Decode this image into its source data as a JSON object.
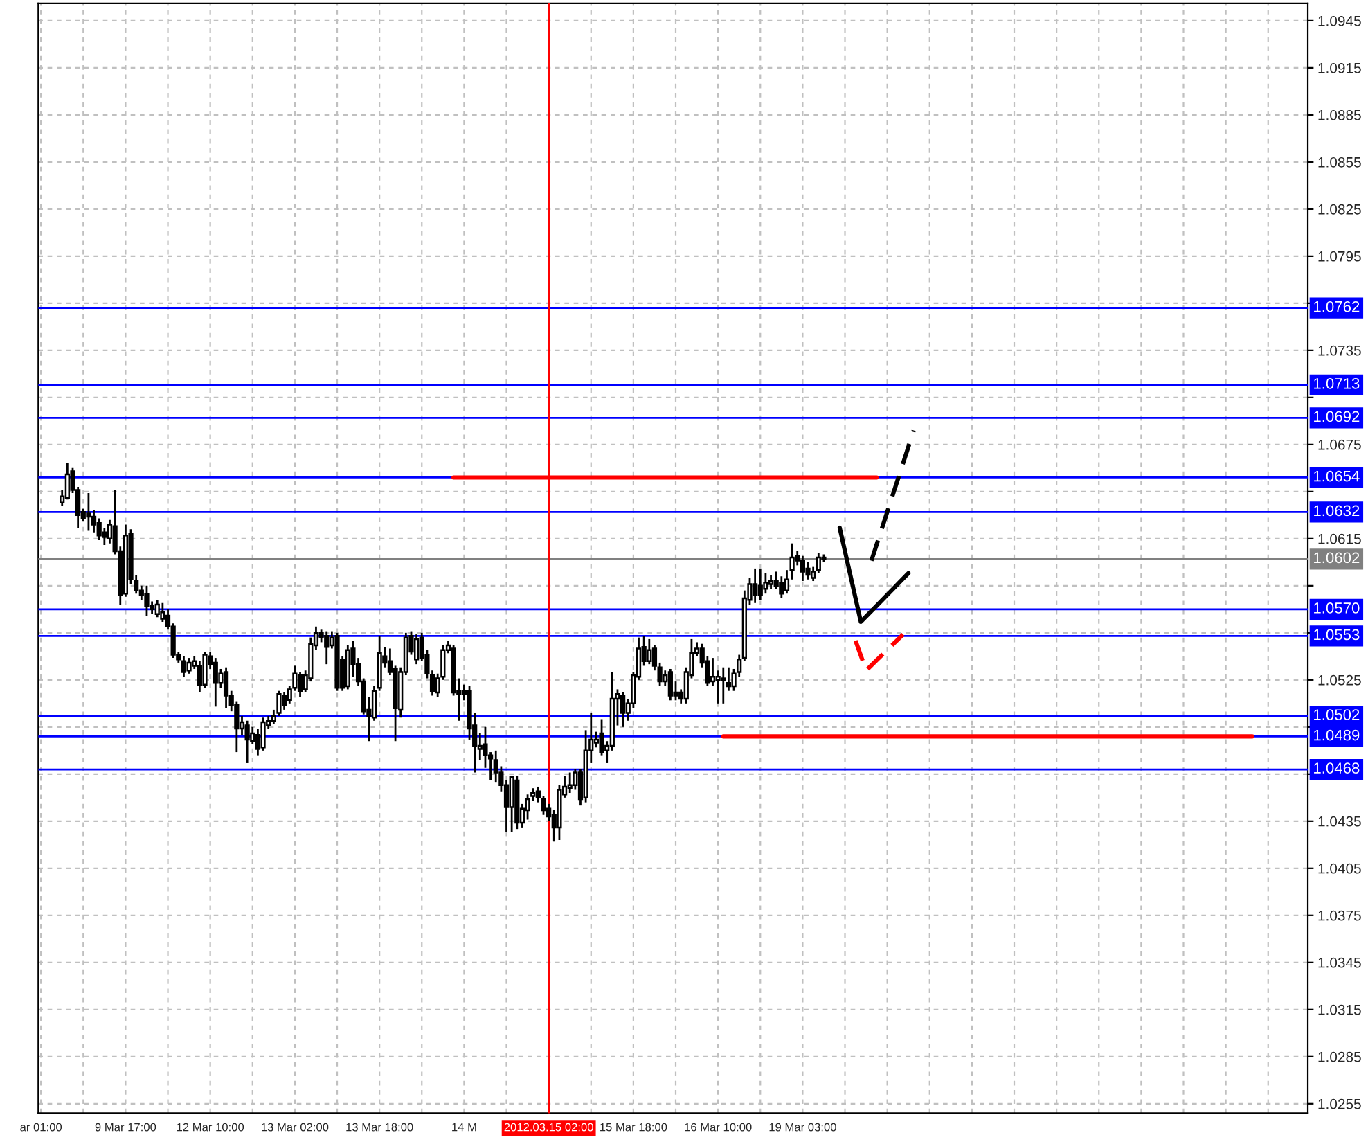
{
  "chart_data": {
    "type": "candlestick",
    "categories": [
      "ar 01:00",
      null,
      null,
      null,
      null,
      null,
      null,
      null,
      null,
      null,
      null,
      null,
      null,
      null,
      null,
      null,
      "9 Mar 17:00",
      null,
      null,
      null,
      null,
      null,
      null,
      null,
      null,
      null,
      null,
      null,
      null,
      null,
      null,
      null,
      "12 Mar 10:00",
      null,
      null,
      null,
      null,
      null,
      null,
      null,
      null,
      null,
      null,
      null,
      null,
      null,
      null,
      null,
      "13 Mar 02:00",
      null,
      null,
      null,
      null,
      null,
      null,
      null,
      null,
      null,
      null,
      null,
      null,
      null,
      null,
      null,
      "13 Mar 18:00",
      null,
      null,
      null,
      null,
      null,
      null,
      null,
      null,
      null,
      null,
      null,
      null,
      null,
      null,
      null,
      "14 M",
      null,
      null,
      null,
      null,
      null,
      null,
      null,
      null,
      null,
      null,
      null,
      null,
      null,
      null,
      null,
      "2012.03.15 02:00",
      null,
      null,
      null,
      null,
      null,
      null,
      null,
      null,
      null,
      null,
      null,
      null,
      null,
      null,
      null,
      "15 Mar 18:00",
      null,
      null,
      null,
      null,
      null,
      null,
      null,
      null,
      null,
      null,
      null,
      null,
      null,
      null,
      null,
      "16 Mar 10:00",
      null,
      null,
      null,
      null,
      null,
      null,
      null,
      null,
      null,
      null,
      null,
      null,
      null,
      null,
      null,
      "19 Mar 03:00",
      null,
      null,
      null,
      null,
      null,
      null,
      null,
      null,
      null,
      null,
      null,
      null,
      null,
      null,
      null,
      null,
      null,
      null,
      null,
      null,
      null,
      null,
      null,
      null,
      null,
      null,
      null,
      null,
      null,
      null,
      null,
      null,
      null,
      null,
      null,
      null,
      null,
      null,
      null,
      null,
      null,
      null,
      null,
      null,
      null,
      null,
      null,
      null,
      null,
      null,
      null,
      null,
      null,
      null,
      null,
      null,
      null,
      null,
      null,
      null,
      null,
      null,
      null,
      null,
      null,
      null,
      null,
      null,
      null,
      null,
      null,
      null,
      null,
      null,
      null,
      null,
      null,
      null,
      null,
      null,
      null,
      null,
      null,
      null,
      null,
      null,
      null,
      null,
      null,
      null,
      null,
      null,
      null,
      null,
      null
    ],
    "ohlc": [
      null,
      null,
      null,
      null,
      [
        1.0638,
        1.0646,
        1.0636,
        1.0642
      ],
      [
        1.0641,
        1.0663,
        1.064,
        1.0656
      ],
      [
        1.0658,
        1.066,
        1.0644,
        1.0646
      ],
      [
        1.0646,
        1.0648,
        1.0622,
        1.063
      ],
      [
        1.0632,
        1.0634,
        1.0626,
        1.0628
      ],
      [
        1.0631,
        1.0644,
        1.062,
        1.0629
      ],
      [
        1.0629,
        1.0633,
        1.0619,
        1.0624
      ],
      [
        1.0625,
        1.0628,
        1.0614,
        1.0617
      ],
      [
        1.0619,
        1.0622,
        1.0611,
        1.0616
      ],
      [
        1.0615,
        1.0627,
        1.0612,
        1.0624
      ],
      [
        1.0623,
        1.0646,
        1.0605,
        1.0607
      ],
      [
        1.0607,
        1.061,
        1.0573,
        1.0579
      ],
      [
        1.058,
        1.0624,
        1.0578,
        1.0617
      ],
      [
        1.0618,
        1.0621,
        1.0586,
        1.0589
      ],
      [
        1.0588,
        1.0592,
        1.058,
        1.0582
      ],
      [
        1.0582,
        1.0585,
        1.0576,
        1.0579
      ],
      [
        1.058,
        1.0585,
        1.0566,
        1.0572
      ],
      [
        1.0572,
        1.0575,
        1.0567,
        1.057
      ],
      [
        1.0567,
        1.0576,
        1.0565,
        1.0573
      ],
      [
        1.0564,
        1.0574,
        1.0562,
        1.0568
      ],
      [
        1.0566,
        1.057,
        1.0557,
        1.0559
      ],
      [
        1.0559,
        1.0561,
        1.0539,
        1.0541
      ],
      [
        1.0541,
        1.0543,
        1.0536,
        1.0538
      ],
      [
        1.0537,
        1.054,
        1.0527,
        1.053
      ],
      [
        1.0531,
        1.0539,
        1.0529,
        1.0536
      ],
      [
        1.0534,
        1.054,
        1.0532,
        1.0537
      ],
      [
        1.0534,
        1.0537,
        1.0517,
        1.0522
      ],
      [
        1.0522,
        1.0543,
        1.052,
        1.0541
      ],
      [
        1.054,
        1.0543,
        1.0532,
        1.0535
      ],
      [
        1.0536,
        1.0539,
        1.0508,
        1.0523
      ],
      [
        1.0523,
        1.0532,
        1.052,
        1.0529
      ],
      [
        1.053,
        1.0533,
        1.0507,
        1.0515
      ],
      [
        1.0515,
        1.0518,
        1.0505,
        1.0509
      ],
      [
        1.0509,
        1.0511,
        1.0479,
        1.0494
      ],
      [
        1.0494,
        1.0502,
        1.049,
        1.0498
      ],
      [
        1.0496,
        1.0499,
        1.0472,
        1.0487
      ],
      [
        1.0486,
        1.0495,
        1.0484,
        1.0491
      ],
      [
        1.049,
        1.0494,
        1.0477,
        1.0481
      ],
      [
        1.0482,
        1.0501,
        1.048,
        1.0498
      ],
      [
        1.0496,
        1.0502,
        1.0494,
        1.0499
      ],
      [
        1.0499,
        1.0506,
        1.0497,
        1.0502
      ],
      [
        1.0504,
        1.0518,
        1.0502,
        1.0516
      ],
      [
        1.0515,
        1.0517,
        1.0506,
        1.0509
      ],
      [
        1.0512,
        1.0521,
        1.051,
        1.0519
      ],
      [
        1.052,
        1.0534,
        1.0518,
        1.0529
      ],
      [
        1.0528,
        1.053,
        1.0514,
        1.0518
      ],
      [
        1.0519,
        1.0531,
        1.0517,
        1.0528
      ],
      [
        1.0526,
        1.0552,
        1.0524,
        1.0548
      ],
      [
        1.0547,
        1.0559,
        1.0544,
        1.0555
      ],
      [
        1.0555,
        1.0557,
        1.0549,
        1.0552
      ],
      [
        1.0553,
        1.0556,
        1.0535,
        1.0546
      ],
      [
        1.0547,
        1.0556,
        1.0545,
        1.0552
      ],
      [
        1.0553,
        1.0555,
        1.0518,
        1.052
      ],
      [
        1.0538,
        1.054,
        1.0518,
        1.052
      ],
      [
        1.0521,
        1.0547,
        1.0519,
        1.0544
      ],
      [
        1.0545,
        1.055,
        1.0527,
        1.0535
      ],
      [
        1.0535,
        1.0539,
        1.0521,
        1.0524
      ],
      [
        1.0524,
        1.0526,
        1.0503,
        1.0505
      ],
      [
        1.0506,
        1.0514,
        1.0486,
        1.0502
      ],
      [
        1.0501,
        1.0521,
        1.0499,
        1.0518
      ],
      [
        1.052,
        1.0553,
        1.0518,
        1.0542
      ],
      [
        1.054,
        1.0546,
        1.0533,
        1.0536
      ],
      [
        1.0537,
        1.0545,
        1.0528,
        1.053
      ],
      [
        1.0532,
        1.0534,
        1.0486,
        1.0507
      ],
      [
        1.0506,
        1.0533,
        1.0501,
        1.053
      ],
      [
        1.053,
        1.0555,
        1.0528,
        1.0552
      ],
      [
        1.0553,
        1.0556,
        1.0541,
        1.0543
      ],
      [
        1.0538,
        1.0554,
        1.0535,
        1.0551
      ],
      [
        1.0552,
        1.0555,
        1.0537,
        1.0539
      ],
      [
        1.0541,
        1.0544,
        1.0526,
        1.0529
      ],
      [
        1.0528,
        1.0531,
        1.0515,
        1.0518
      ],
      [
        1.0517,
        1.0529,
        1.0514,
        1.0526
      ],
      [
        1.0527,
        1.0547,
        1.0525,
        1.0544
      ],
      [
        1.0544,
        1.055,
        1.0542,
        1.0547
      ],
      [
        1.0545,
        1.0547,
        1.0515,
        1.0517
      ],
      [
        1.0518,
        1.0526,
        1.0499,
        1.0516
      ],
      [
        1.0518,
        1.0522,
        1.0512,
        1.0516
      ],
      [
        1.0518,
        1.0521,
        1.0487,
        1.0494
      ],
      [
        1.0496,
        1.0504,
        1.0466,
        1.0483
      ],
      [
        1.0481,
        1.0491,
        1.0474,
        1.0483
      ],
      [
        1.0484,
        1.0495,
        1.0469,
        1.0477
      ],
      [
        1.0477,
        1.0479,
        1.0461,
        1.0475
      ],
      [
        1.0474,
        1.048,
        1.046,
        1.0466
      ],
      [
        1.0466,
        1.047,
        1.0454,
        1.0458
      ],
      [
        1.0458,
        1.0461,
        1.0428,
        1.0444
      ],
      [
        1.0444,
        1.0464,
        1.0428,
        1.0463
      ],
      [
        1.0461,
        1.0464,
        1.043,
        1.0434
      ],
      [
        1.0434,
        1.0446,
        1.0431,
        1.0443
      ],
      [
        1.0442,
        1.0452,
        1.0436,
        1.0449
      ],
      [
        1.0451,
        1.0456,
        1.0448,
        1.0453
      ],
      [
        1.0454,
        1.0457,
        1.0447,
        1.045
      ],
      [
        1.0449,
        1.0451,
        1.0439,
        1.0442
      ],
      [
        1.0443,
        1.0446,
        1.0435,
        1.0438
      ],
      [
        1.0439,
        1.0442,
        1.0422,
        1.0431
      ],
      [
        1.0431,
        1.0458,
        1.0423,
        1.0455
      ],
      [
        1.0452,
        1.0464,
        1.045,
        1.0457
      ],
      [
        1.0456,
        1.0466,
        1.0453,
        1.0458
      ],
      [
        1.0458,
        1.0468,
        1.0455,
        1.0466
      ],
      [
        1.0466,
        1.0468,
        1.0445,
        1.0449
      ],
      [
        1.045,
        1.0493,
        1.0447,
        1.048
      ],
      [
        1.048,
        1.0504,
        1.0472,
        1.0487
      ],
      [
        1.0485,
        1.0492,
        1.0482,
        1.0487
      ],
      [
        1.0491,
        1.05,
        1.0477,
        1.0479
      ],
      [
        1.048,
        1.0486,
        1.0472,
        1.0483
      ],
      [
        1.0483,
        1.053,
        1.048,
        1.0513
      ],
      [
        1.0513,
        1.0519,
        1.0496,
        1.0516
      ],
      [
        1.0515,
        1.0517,
        1.0495,
        1.0504
      ],
      [
        1.0504,
        1.0513,
        1.0499,
        1.051
      ],
      [
        1.051,
        1.053,
        1.0507,
        1.0528
      ],
      [
        1.0527,
        1.0552,
        1.0525,
        1.0545
      ],
      [
        1.0546,
        1.0553,
        1.0534,
        1.0537
      ],
      [
        1.0537,
        1.0551,
        1.0535,
        1.0544
      ],
      [
        1.0545,
        1.0547,
        1.0531,
        1.0534
      ],
      [
        1.0533,
        1.0536,
        1.0521,
        1.0524
      ],
      [
        1.0524,
        1.0531,
        1.0521,
        1.0528
      ],
      [
        1.053,
        1.0532,
        1.0512,
        1.0515
      ],
      [
        1.0517,
        1.0524,
        1.0512,
        1.0515
      ],
      [
        1.0517,
        1.0519,
        1.051,
        1.0513
      ],
      [
        1.0513,
        1.0533,
        1.051,
        1.053
      ],
      [
        1.0528,
        1.0551,
        1.0526,
        1.0542
      ],
      [
        1.0542,
        1.0549,
        1.054,
        1.0545
      ],
      [
        1.0545,
        1.0548,
        1.0533,
        1.0536
      ],
      [
        1.0537,
        1.054,
        1.0521,
        1.0523
      ],
      [
        1.0524,
        1.0539,
        1.0521,
        1.0527
      ],
      [
        1.0525,
        1.0531,
        1.051,
        1.0527
      ],
      [
        1.0525,
        1.0533,
        1.051,
        1.0526
      ],
      [
        1.0523,
        1.0533,
        1.0518,
        1.0521
      ],
      [
        1.0521,
        1.0532,
        1.0518,
        1.0529
      ],
      [
        1.053,
        1.0541,
        1.0527,
        1.0538
      ],
      [
        1.0539,
        1.0582,
        1.0537,
        1.0577
      ],
      [
        1.0576,
        1.059,
        1.0573,
        1.0586
      ],
      [
        1.0586,
        1.0596,
        1.0574,
        1.0579
      ],
      [
        1.0585,
        1.0596,
        1.0576,
        1.0579
      ],
      [
        1.0583,
        1.0593,
        1.058,
        1.0587
      ],
      [
        1.0586,
        1.0592,
        1.0583,
        1.0588
      ],
      [
        1.0588,
        1.0594,
        1.0583,
        1.0585
      ],
      [
        1.0587,
        1.0591,
        1.0577,
        1.058
      ],
      [
        1.0582,
        1.0595,
        1.058,
        1.0589
      ],
      [
        1.0595,
        1.0612,
        1.0589,
        1.0603
      ],
      [
        1.0604,
        1.0607,
        1.0598,
        1.0601
      ],
      [
        1.0601,
        1.0604,
        1.0588,
        1.0594
      ],
      [
        1.0596,
        1.06,
        1.0589,
        1.0592
      ],
      [
        1.059,
        1.0597,
        1.0588,
        1.0594
      ],
      [
        1.0595,
        1.0606,
        1.0593,
        1.0603
      ],
      [
        1.0603,
        1.0605,
        1.06,
        1.0602
      ],
      null,
      null,
      null,
      null,
      null,
      null,
      null,
      null,
      null,
      null,
      null,
      null,
      null,
      null,
      null,
      null,
      null,
      null,
      null,
      null,
      null,
      null,
      null,
      null,
      null,
      null,
      null,
      null,
      null,
      null,
      null,
      null,
      null,
      null,
      null,
      null,
      null,
      null,
      null,
      null,
      null,
      null,
      null,
      null,
      null,
      null,
      null,
      null,
      null,
      null,
      null,
      null,
      null,
      null,
      null,
      null,
      null,
      null,
      null,
      null,
      null,
      null,
      null,
      null,
      null,
      null,
      null,
      null,
      null,
      null,
      null,
      null,
      null,
      null,
      null,
      null,
      null,
      null,
      null,
      null,
      null,
      null,
      null,
      null,
      null,
      null,
      null,
      null,
      null,
      null,
      null
    ],
    "series": [
      {
        "type": "line",
        "color": "#ff0000",
        "line_style": "solid",
        "values": [
          null,
          null,
          null,
          null,
          null,
          null,
          null,
          null,
          null,
          null,
          null,
          null,
          null,
          null,
          null,
          null,
          null,
          null,
          null,
          null,
          null,
          null,
          null,
          null,
          null,
          null,
          null,
          null,
          null,
          null,
          null,
          null,
          null,
          null,
          null,
          null,
          null,
          null,
          null,
          null,
          null,
          null,
          null,
          null,
          null,
          null,
          null,
          null,
          null,
          null,
          null,
          null,
          null,
          null,
          null,
          null,
          null,
          null,
          null,
          null,
          null,
          null,
          null,
          null,
          null,
          null,
          null,
          null,
          null,
          null,
          null,
          null,
          null,
          null,
          null,
          null,
          null,
          null,
          1.0654,
          null,
          null,
          null,
          null,
          null,
          null,
          null,
          null,
          null,
          null,
          null,
          null,
          null,
          null,
          null,
          null,
          null,
          null,
          null,
          null,
          null,
          null,
          null,
          null,
          null,
          null,
          null,
          null,
          null,
          null,
          null,
          null,
          null,
          null,
          null,
          null,
          null,
          null,
          null,
          null,
          null,
          null,
          null,
          null,
          null,
          null,
          null,
          null,
          null,
          null,
          null,
          null,
          null,
          null,
          null,
          null,
          null,
          null,
          null,
          null,
          null,
          null,
          null,
          null,
          null,
          null,
          null,
          null,
          null,
          null,
          null,
          null,
          null,
          null,
          null,
          null,
          null,
          null,
          null,
          1.0654,
          null,
          null,
          null,
          null,
          null,
          null,
          null,
          null,
          null,
          null,
          null,
          null,
          null,
          null,
          null,
          null,
          null,
          null,
          null,
          null,
          null,
          null,
          null,
          null,
          null,
          null,
          null,
          null,
          null,
          null,
          null,
          null,
          null,
          null,
          null,
          null,
          null,
          null,
          null,
          null,
          null,
          null,
          null,
          null,
          null,
          null,
          null,
          null,
          null,
          null,
          null,
          null,
          null,
          null,
          null,
          null,
          null,
          null,
          null,
          null,
          null,
          null,
          null,
          null,
          null,
          null,
          null,
          null,
          null,
          null,
          null,
          null,
          null,
          null,
          null,
          null,
          null,
          null,
          null,
          null,
          null
        ]
      },
      {
        "type": "line",
        "color": "#ff0000",
        "line_style": "solid",
        "values": [
          null,
          null,
          null,
          null,
          null,
          null,
          null,
          null,
          null,
          null,
          null,
          null,
          null,
          null,
          null,
          null,
          null,
          null,
          null,
          null,
          null,
          null,
          null,
          null,
          null,
          null,
          null,
          null,
          null,
          null,
          null,
          null,
          null,
          null,
          null,
          null,
          null,
          null,
          null,
          null,
          null,
          null,
          null,
          null,
          null,
          null,
          null,
          null,
          null,
          null,
          null,
          null,
          null,
          null,
          null,
          null,
          null,
          null,
          null,
          null,
          null,
          null,
          null,
          null,
          null,
          null,
          null,
          null,
          null,
          null,
          null,
          null,
          null,
          null,
          null,
          null,
          null,
          null,
          null,
          null,
          null,
          null,
          null,
          null,
          null,
          null,
          null,
          null,
          null,
          null,
          null,
          null,
          null,
          null,
          null,
          null,
          null,
          null,
          null,
          null,
          null,
          null,
          null,
          null,
          null,
          null,
          null,
          null,
          null,
          null,
          null,
          null,
          null,
          null,
          null,
          null,
          null,
          null,
          null,
          null,
          null,
          null,
          null,
          null,
          null,
          null,
          null,
          null,
          null,
          1.0489,
          null,
          null,
          null,
          null,
          null,
          null,
          null,
          null,
          null,
          null,
          null,
          null,
          null,
          null,
          null,
          null,
          null,
          null,
          null,
          null,
          null,
          null,
          null,
          null,
          null,
          null,
          null,
          null,
          null,
          null,
          null,
          null,
          null,
          null,
          null,
          null,
          null,
          null,
          null,
          null,
          null,
          null,
          null,
          null,
          null,
          null,
          null,
          null,
          null,
          null,
          null,
          null,
          null,
          null,
          null,
          null,
          null,
          null,
          null,
          null,
          null,
          null,
          null,
          null,
          null,
          null,
          null,
          null,
          null,
          null,
          null,
          null,
          null,
          null,
          null,
          null,
          null,
          null,
          null,
          null,
          null,
          null,
          null,
          null,
          null,
          null,
          null,
          null,
          null,
          null,
          null,
          null,
          null,
          null,
          null,
          null,
          null,
          null,
          null,
          1.0489,
          null,
          null,
          null,
          null,
          null,
          null,
          null,
          null,
          null,
          null
        ]
      },
      {
        "type": "line",
        "color": "#000000",
        "line_style": "solid",
        "values": [
          null,
          null,
          null,
          null,
          null,
          null,
          null,
          null,
          null,
          null,
          null,
          null,
          null,
          null,
          null,
          null,
          null,
          null,
          null,
          null,
          null,
          null,
          null,
          null,
          null,
          null,
          null,
          null,
          null,
          null,
          null,
          null,
          null,
          null,
          null,
          null,
          null,
          null,
          null,
          null,
          null,
          null,
          null,
          null,
          null,
          null,
          null,
          null,
          null,
          null,
          null,
          null,
          null,
          null,
          null,
          null,
          null,
          null,
          null,
          null,
          null,
          null,
          null,
          null,
          null,
          null,
          null,
          null,
          null,
          null,
          null,
          null,
          null,
          null,
          null,
          null,
          null,
          null,
          null,
          null,
          null,
          null,
          null,
          null,
          null,
          null,
          null,
          null,
          null,
          null,
          null,
          null,
          null,
          null,
          null,
          null,
          null,
          null,
          null,
          null,
          null,
          null,
          null,
          null,
          null,
          null,
          null,
          null,
          null,
          null,
          null,
          null,
          null,
          null,
          null,
          null,
          null,
          null,
          null,
          null,
          null,
          null,
          null,
          null,
          null,
          null,
          null,
          null,
          null,
          null,
          null,
          null,
          null,
          null,
          null,
          null,
          null,
          null,
          null,
          null,
          null,
          null,
          null,
          null,
          null,
          null,
          null,
          null,
          null,
          null,
          null,
          1.0622,
          null,
          null,
          null,
          1.0562,
          null,
          null,
          null,
          null,
          null,
          null,
          null,
          null,
          1.0593,
          null,
          null,
          null,
          null,
          null,
          null,
          null,
          null,
          null,
          null,
          null,
          null,
          null,
          null,
          null,
          null,
          null,
          null,
          null,
          null,
          null,
          null,
          null,
          null,
          null,
          null,
          null,
          null,
          null,
          null,
          null,
          null,
          null,
          null,
          null,
          null,
          null,
          null,
          null,
          null,
          null,
          null,
          null,
          null,
          null,
          null,
          null,
          null,
          null,
          null,
          null,
          null,
          null,
          null,
          null,
          null,
          null,
          null,
          null,
          null,
          null,
          null,
          null,
          null,
          null,
          null,
          null,
          null,
          null,
          null,
          null,
          null,
          null,
          null,
          null
        ]
      },
      {
        "type": "line",
        "color": "#000000",
        "line_style": "dashed",
        "values": [
          null,
          null,
          null,
          null,
          null,
          null,
          null,
          null,
          null,
          null,
          null,
          null,
          null,
          null,
          null,
          null,
          null,
          null,
          null,
          null,
          null,
          null,
          null,
          null,
          null,
          null,
          null,
          null,
          null,
          null,
          null,
          null,
          null,
          null,
          null,
          null,
          null,
          null,
          null,
          null,
          null,
          null,
          null,
          null,
          null,
          null,
          null,
          null,
          null,
          null,
          null,
          null,
          null,
          null,
          null,
          null,
          null,
          null,
          null,
          null,
          null,
          null,
          null,
          null,
          null,
          null,
          null,
          null,
          null,
          null,
          null,
          null,
          null,
          null,
          null,
          null,
          null,
          null,
          null,
          null,
          null,
          null,
          null,
          null,
          null,
          null,
          null,
          null,
          null,
          null,
          null,
          null,
          null,
          null,
          null,
          null,
          null,
          null,
          null,
          null,
          null,
          null,
          null,
          null,
          null,
          null,
          null,
          null,
          null,
          null,
          null,
          null,
          null,
          null,
          null,
          null,
          null,
          null,
          null,
          null,
          null,
          null,
          null,
          null,
          null,
          null,
          null,
          null,
          null,
          null,
          null,
          null,
          null,
          null,
          null,
          null,
          null,
          null,
          null,
          null,
          null,
          null,
          null,
          null,
          null,
          null,
          null,
          null,
          null,
          null,
          null,
          null,
          null,
          null,
          null,
          null,
          null,
          1.0601,
          null,
          null,
          null,
          null,
          null,
          null,
          null,
          1.0684,
          null,
          null,
          null,
          null,
          null,
          null,
          null,
          null,
          null,
          null,
          null,
          null,
          null,
          null,
          null,
          null,
          null,
          null,
          null,
          null,
          null,
          null,
          null,
          null,
          null,
          null,
          null,
          null,
          null,
          null,
          null,
          null,
          null,
          null,
          null,
          null,
          null,
          null,
          null,
          null,
          null,
          null,
          null,
          null,
          null,
          null,
          null,
          null,
          null,
          null,
          null,
          null,
          null,
          null,
          null,
          null,
          null,
          null,
          null,
          null,
          null,
          null,
          null,
          null,
          null,
          null,
          null,
          null,
          null,
          null,
          null,
          null,
          null,
          null
        ]
      },
      {
        "type": "line",
        "color": "#ff0000",
        "line_style": "dashed",
        "values": [
          null,
          null,
          null,
          null,
          null,
          null,
          null,
          null,
          null,
          null,
          null,
          null,
          null,
          null,
          null,
          null,
          null,
          null,
          null,
          null,
          null,
          null,
          null,
          null,
          null,
          null,
          null,
          null,
          null,
          null,
          null,
          null,
          null,
          null,
          null,
          null,
          null,
          null,
          null,
          null,
          null,
          null,
          null,
          null,
          null,
          null,
          null,
          null,
          null,
          null,
          null,
          null,
          null,
          null,
          null,
          null,
          null,
          null,
          null,
          null,
          null,
          null,
          null,
          null,
          null,
          null,
          null,
          null,
          null,
          null,
          null,
          null,
          null,
          null,
          null,
          null,
          null,
          null,
          null,
          null,
          null,
          null,
          null,
          null,
          null,
          null,
          null,
          null,
          null,
          null,
          null,
          null,
          null,
          null,
          null,
          null,
          null,
          null,
          null,
          null,
          null,
          null,
          null,
          null,
          null,
          null,
          null,
          null,
          null,
          null,
          null,
          null,
          null,
          null,
          null,
          null,
          null,
          null,
          null,
          null,
          null,
          null,
          null,
          null,
          null,
          null,
          null,
          null,
          null,
          null,
          null,
          null,
          null,
          null,
          null,
          null,
          null,
          null,
          null,
          null,
          null,
          null,
          null,
          null,
          null,
          null,
          null,
          null,
          null,
          null,
          null,
          null,
          null,
          null,
          1.055,
          null,
          1.0531,
          null,
          null,
          null,
          null,
          null,
          null,
          1.0554,
          null,
          null,
          null,
          null,
          null,
          null,
          null,
          null,
          null,
          null,
          null,
          null,
          null,
          null,
          null,
          null,
          null,
          null,
          null,
          null,
          null,
          null,
          null,
          null,
          null,
          null,
          null,
          null,
          null,
          null,
          null,
          null,
          null,
          null,
          null,
          null,
          null,
          null,
          null,
          null,
          null,
          null,
          null,
          null,
          null,
          null,
          null,
          null,
          null,
          null,
          null,
          null,
          null,
          null,
          null,
          null,
          null,
          null,
          null,
          null,
          null,
          null,
          null,
          null,
          null,
          null,
          null,
          null,
          null,
          null,
          null,
          null,
          null,
          null,
          null,
          null
        ]
      }
    ],
    "ref_lines": [
      {
        "axis": "y",
        "value": 1.0762,
        "label": "1.0762",
        "color": "#0000ff"
      },
      {
        "axis": "y",
        "value": 1.0713,
        "label": "1.0713",
        "color": "#0000ff"
      },
      {
        "axis": "y",
        "value": 1.0692,
        "label": "1.0692",
        "color": "#0000ff"
      },
      {
        "axis": "y",
        "value": 1.0654,
        "label": "1.0654",
        "color": "#0000ff"
      },
      {
        "axis": "y",
        "value": 1.0632,
        "label": "1.0632",
        "color": "#0000ff"
      },
      {
        "axis": "y",
        "value": 1.0602,
        "label": "1.0602",
        "color": "#808080"
      },
      {
        "axis": "y",
        "value": 1.057,
        "label": "1.0570",
        "color": "#0000ff"
      },
      {
        "axis": "y",
        "value": 1.0553,
        "label": "1.0553",
        "color": "#0000ff"
      },
      {
        "axis": "y",
        "value": 1.0502,
        "label": "1.0502",
        "color": "#0000ff"
      },
      {
        "axis": "y",
        "value": 1.0489,
        "label": "1.0489",
        "color": "#0000ff"
      },
      {
        "axis": "y",
        "value": 1.0468,
        "label": "1.0468",
        "color": "#0000ff"
      },
      {
        "axis": "x",
        "value": "2012.03.15 02:00",
        "color": "#ff0000"
      }
    ],
    "ylim": [
      1.0249,
      1.0956
    ],
    "yticks": [
      1.0255,
      1.0285,
      1.0315,
      1.0345,
      1.0375,
      1.0405,
      1.0435,
      {
        "value": 1.0465,
        "label": null
      },
      {
        "value": 1.0495,
        "label": null
      },
      1.0525,
      {
        "value": 1.0555,
        "label": null
      },
      {
        "value": 1.0585,
        "label": null
      },
      1.0615,
      {
        "value": 1.0645,
        "label": null
      },
      1.0675,
      {
        "value": 1.0705,
        "label": null
      },
      1.0735,
      {
        "value": 1.0765,
        "label": null
      },
      1.0795,
      1.0825,
      1.0855,
      1.0885,
      1.0915,
      1.0945
    ],
    "grid": true
  }
}
